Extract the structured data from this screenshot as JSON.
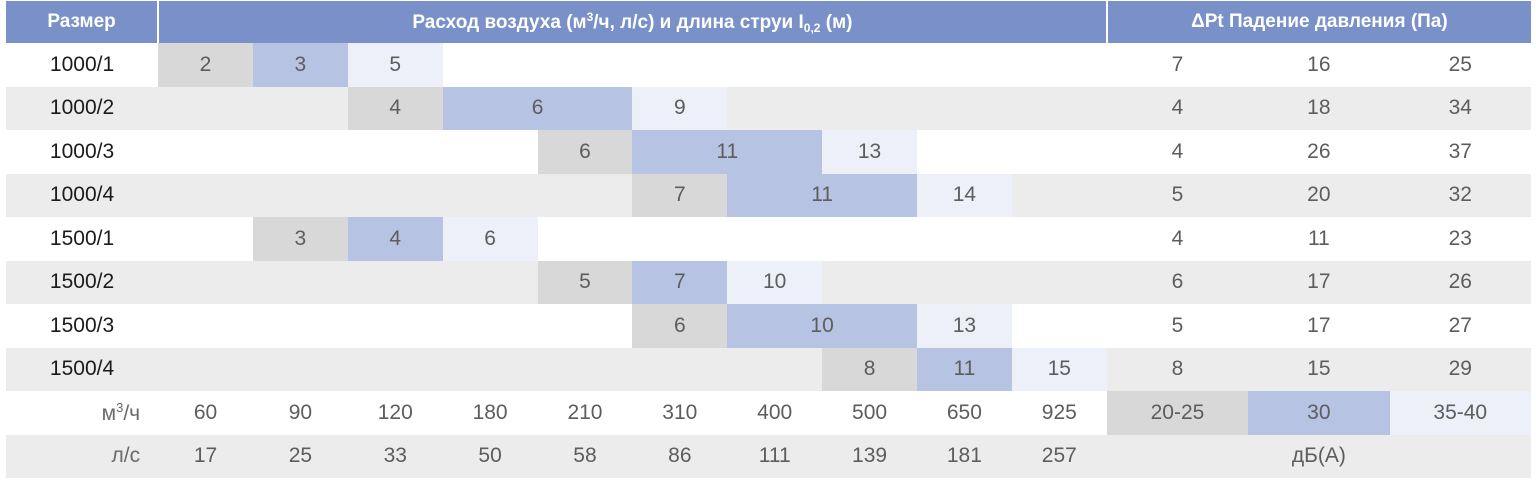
{
  "header": {
    "size": "Размер",
    "flow_main": "Расход воздуха (м",
    "flow_sup": "3",
    "flow_mid": "/ч, л/с) и длина струи I",
    "flow_sub": "0,2",
    "flow_end": " (м)",
    "pressure": "ΔPt Падение давления (Па)"
  },
  "rows": [
    {
      "size": "1000/1",
      "cells": [
        "2",
        "3",
        "5",
        "",
        "",
        "",
        "",
        "",
        "",
        ""
      ],
      "dp": [
        "7",
        "16",
        "25"
      ]
    },
    {
      "size": "1000/2",
      "cells": [
        "",
        "",
        "4",
        "6",
        "",
        "9",
        "",
        "",
        "",
        ""
      ],
      "dp": [
        "4",
        "18",
        "34"
      ]
    },
    {
      "size": "1000/3",
      "cells": [
        "",
        "",
        "",
        "",
        "6",
        "11",
        "",
        "13",
        "",
        ""
      ],
      "dp": [
        "4",
        "26",
        "37"
      ]
    },
    {
      "size": "1000/4",
      "cells": [
        "",
        "",
        "",
        "",
        "",
        "7",
        "11",
        "",
        "14",
        ""
      ],
      "dp": [
        "5",
        "20",
        "32"
      ]
    },
    {
      "size": "1500/1",
      "cells": [
        "",
        "3",
        "4",
        "6",
        "",
        "",
        "",
        "",
        "",
        ""
      ],
      "dp": [
        "4",
        "11",
        "23"
      ]
    },
    {
      "size": "1500/2",
      "cells": [
        "",
        "",
        "",
        "",
        "5",
        "7",
        "10",
        "",
        "",
        ""
      ],
      "dp": [
        "6",
        "17",
        "26"
      ]
    },
    {
      "size": "1500/3",
      "cells": [
        "",
        "",
        "",
        "",
        "",
        "6",
        "10",
        "",
        "13",
        ""
      ],
      "dp": [
        "5",
        "17",
        "27"
      ]
    },
    {
      "size": "1500/4",
      "cells": [
        "",
        "",
        "",
        "",
        "",
        "",
        "",
        "8",
        "11",
        "15"
      ],
      "dp": [
        "8",
        "15",
        "29"
      ]
    }
  ],
  "footer": {
    "m3h_label_pre": "м",
    "m3h_label_sup": "3",
    "m3h_label_post": "/ч",
    "m3h": [
      "60",
      "90",
      "120",
      "180",
      "210",
      "310",
      "400",
      "500",
      "650",
      "925"
    ],
    "noise_levels": [
      "20-25",
      "30",
      "35-40"
    ],
    "ls_label": "л/с",
    "ls": [
      "17",
      "25",
      "33",
      "50",
      "58",
      "86",
      "111",
      "139",
      "181",
      "257"
    ],
    "noise_unit": "дБ(А)"
  },
  "colors": {
    "header_bg": "#7990c8",
    "level_low": "#d8d8d8",
    "level_mid": "#b7c3e3",
    "level_high": "#edf0f9",
    "stripe": "#ececec"
  }
}
